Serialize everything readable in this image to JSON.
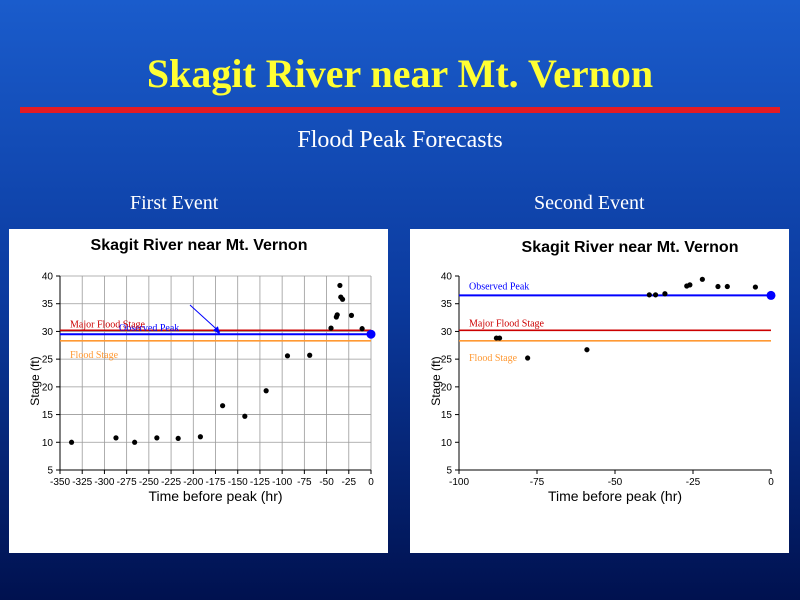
{
  "slide": {
    "title": "Skagit River near Mt. Vernon",
    "subtitle": "Flood Peak Forecasts",
    "first_label": "First Event",
    "second_label": "Second Event"
  },
  "colors": {
    "title": "#ffff33",
    "rule": "#e31b23",
    "observed": "#0000ff",
    "major": "#cc0000",
    "flood": "#ff9933"
  },
  "chart_data": [
    {
      "type": "scatter",
      "title": "Skagit River near Mt. Vernon",
      "xlabel": "Time before peak (hr)",
      "ylabel": "Stage (ft)",
      "xlim": [
        -350,
        0
      ],
      "ylim": [
        5,
        40
      ],
      "xticks": [
        -350,
        -325,
        -300,
        -275,
        -250,
        -225,
        -200,
        -175,
        -150,
        -125,
        -100,
        -75,
        -50,
        -25,
        0
      ],
      "xtick_labels": [
        "-350",
        "-325",
        "-300",
        "-275",
        "-250",
        "-225",
        "-200",
        "-175",
        "-150",
        "-125",
        "-100",
        "-75",
        "-50",
        "-25",
        "0"
      ],
      "yticks": [
        5,
        10,
        15,
        20,
        25,
        30,
        35,
        40
      ],
      "grid": true,
      "points": [
        [
          -337,
          10
        ],
        [
          -287,
          10.8
        ],
        [
          -266,
          10
        ],
        [
          -241,
          10.8
        ],
        [
          -217,
          10.7
        ],
        [
          -192,
          11
        ],
        [
          -167,
          16.6
        ],
        [
          -142,
          14.7
        ],
        [
          -118,
          19.3
        ],
        [
          -94,
          25.6
        ],
        [
          -69,
          25.7
        ],
        [
          -45,
          30.6
        ],
        [
          -39,
          32.6
        ],
        [
          -38,
          33
        ],
        [
          -35,
          38.3
        ],
        [
          -34,
          36.2
        ],
        [
          -32,
          35.8
        ],
        [
          -22,
          32.9
        ],
        [
          -10,
          30.5
        ]
      ],
      "observed_peak_point": [
        0,
        29.5
      ],
      "reference_lines": [
        {
          "name": "Observed Peak",
          "value": 29.5,
          "color": "#0000ff"
        },
        {
          "name": "Major Flood Stage",
          "value": 30.2,
          "color": "#cc0000"
        },
        {
          "name": "Flood Stage",
          "value": 28.3,
          "color": "#ff9933"
        }
      ],
      "annotations": [
        {
          "text": "Observed Peak",
          "color": "#0000ff",
          "arrow_to": [
            -170,
            29.5
          ]
        },
        {
          "text": "Major Flood Stage",
          "color": "#cc0000"
        },
        {
          "text": "Flood Stage",
          "color": "#ff9933"
        }
      ]
    },
    {
      "type": "scatter",
      "title": "Skagit River near Mt. Vernon",
      "xlabel": "Time before peak (hr)",
      "ylabel": "Stage (ft)",
      "xlim": [
        -100,
        0
      ],
      "ylim": [
        5,
        40
      ],
      "xticks": [
        -100,
        -75,
        -50,
        -25,
        0
      ],
      "xtick_labels": [
        "-100",
        "-75",
        "-50",
        "-25",
        "0"
      ],
      "yticks": [
        5,
        10,
        15,
        20,
        25,
        30,
        35,
        40
      ],
      "grid": false,
      "points": [
        [
          -88,
          28.8
        ],
        [
          -87,
          28.8
        ],
        [
          -78,
          25.2
        ],
        [
          -59,
          26.7
        ],
        [
          -39,
          36.6
        ],
        [
          -37,
          36.6
        ],
        [
          -34,
          36.8
        ],
        [
          -27,
          38.2
        ],
        [
          -26,
          38.4
        ],
        [
          -22,
          39.4
        ],
        [
          -17,
          38.1
        ],
        [
          -14,
          38.1
        ],
        [
          -5,
          38
        ]
      ],
      "observed_peak_point": [
        0,
        36.5
      ],
      "reference_lines": [
        {
          "name": "Observed Peak",
          "value": 36.5,
          "color": "#0000ff"
        },
        {
          "name": "Major Flood Stage",
          "value": 30.2,
          "color": "#cc0000"
        },
        {
          "name": "Flood Stage",
          "value": 28.3,
          "color": "#ff9933"
        }
      ],
      "annotations": [
        {
          "text": "Observed Peak",
          "color": "#0000ff"
        },
        {
          "text": "Major Flood Stage",
          "color": "#cc0000"
        },
        {
          "text": "Flood Stage",
          "color": "#ff9933"
        }
      ]
    }
  ]
}
